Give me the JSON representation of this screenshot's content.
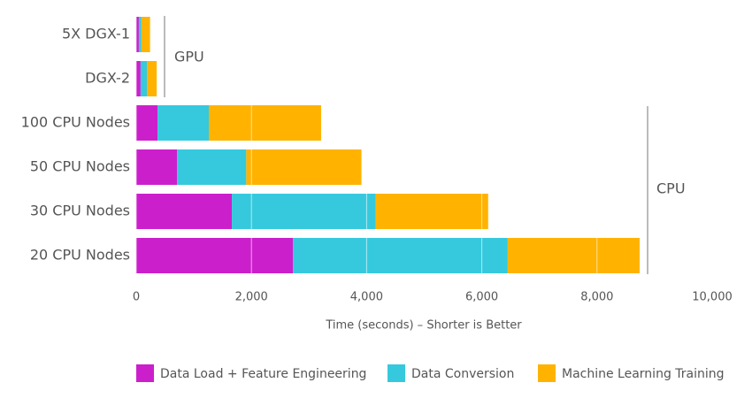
{
  "chart_data": {
    "type": "stacked-bar-horizontal",
    "categories": [
      "5X DGX-1",
      "DGX-2",
      "100 CPU Nodes",
      "50 CPU Nodes",
      "30 CPU Nodes",
      "20 CPU Nodes"
    ],
    "series": [
      {
        "name": "Data Load + Feature Engineering",
        "color": "#cc1fcc",
        "values": [
          45,
          75,
          370,
          710,
          1660,
          2720
        ]
      },
      {
        "name": "Data Conversion",
        "color": "#36c9dd",
        "values": [
          45,
          110,
          890,
          1200,
          2500,
          3730
        ]
      },
      {
        "name": "Machine Learning Training",
        "color": "#ffb300",
        "values": [
          150,
          170,
          1950,
          2000,
          1950,
          2290
        ]
      }
    ],
    "xlabel": "Time (seconds) – Shorter is Better",
    "xlim": [
      0,
      10000
    ],
    "xticks": [
      0,
      {
        "value": 2000,
        "label": "2,000"
      },
      {
        "value": 4000,
        "label": "4,000"
      },
      {
        "value": 6000,
        "label": "6,000"
      },
      {
        "value": 8000,
        "label": "8,000"
      },
      {
        "value": 10000,
        "label": "10,000"
      }
    ],
    "annotations": [
      "GPU",
      "CPU"
    ],
    "grid": true,
    "legend": "bottom"
  }
}
